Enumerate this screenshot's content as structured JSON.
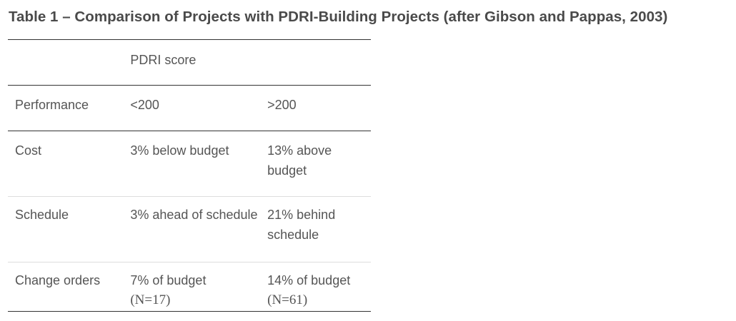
{
  "caption": "Table 1 – Comparison of Projects with PDRI-Building Projects (after Gibson and Pappas, 2003)",
  "header": {
    "col0": "",
    "col1": "PDRI score",
    "col2": ""
  },
  "rows": [
    {
      "label": "Performance",
      "low": "<200",
      "high": ">200"
    },
    {
      "label": "Cost",
      "low": "3% below budget",
      "high": "13% above budget"
    },
    {
      "label": "Schedule",
      "low": "3% ahead of schedule",
      "high": "21% behind schedule"
    },
    {
      "label": "Change orders",
      "low": "7% of budget",
      "low_n": "(N=17)",
      "high": "14% of budget",
      "high_n": "(N=61)"
    }
  ]
}
